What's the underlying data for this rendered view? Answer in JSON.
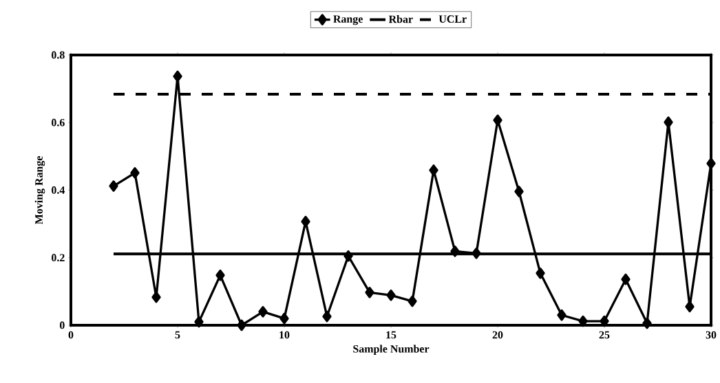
{
  "chart_data": {
    "type": "line",
    "xlabel": "Sample Number",
    "ylabel": "Moving Range",
    "xlim": [
      0,
      30
    ],
    "ylim": [
      0,
      0.8
    ],
    "xticks": [
      0,
      5,
      10,
      15,
      20,
      25,
      30
    ],
    "yticks": [
      0,
      0.2,
      0.4,
      0.6,
      0.8
    ],
    "grid": false,
    "legend": "top",
    "series": [
      {
        "name": "Range",
        "color": "#000000",
        "marker": "diamond",
        "line_style": "solid",
        "x": [
          2,
          3,
          4,
          5,
          6,
          7,
          8,
          9,
          10,
          11,
          12,
          13,
          14,
          15,
          16,
          17,
          18,
          19,
          20,
          21,
          22,
          23,
          24,
          25,
          26,
          27,
          28,
          29,
          30
        ],
        "values": [
          0.412,
          0.451,
          0.083,
          0.737,
          0.01,
          0.148,
          0.0,
          0.04,
          0.02,
          0.307,
          0.026,
          0.205,
          0.097,
          0.089,
          0.071,
          0.459,
          0.219,
          0.213,
          0.607,
          0.396,
          0.154,
          0.03,
          0.012,
          0.012,
          0.136,
          0.006,
          0.601,
          0.055,
          0.479
        ]
      },
      {
        "name": "Rbar",
        "color": "#000000",
        "marker": "none",
        "line_style": "solid",
        "x": [
          2,
          30
        ],
        "values": [
          0.211,
          0.211
        ]
      },
      {
        "name": "UCLr",
        "color": "#000000",
        "marker": "none",
        "line_style": "dashed",
        "x": [
          2,
          30
        ],
        "values": [
          0.684,
          0.684
        ]
      }
    ]
  }
}
